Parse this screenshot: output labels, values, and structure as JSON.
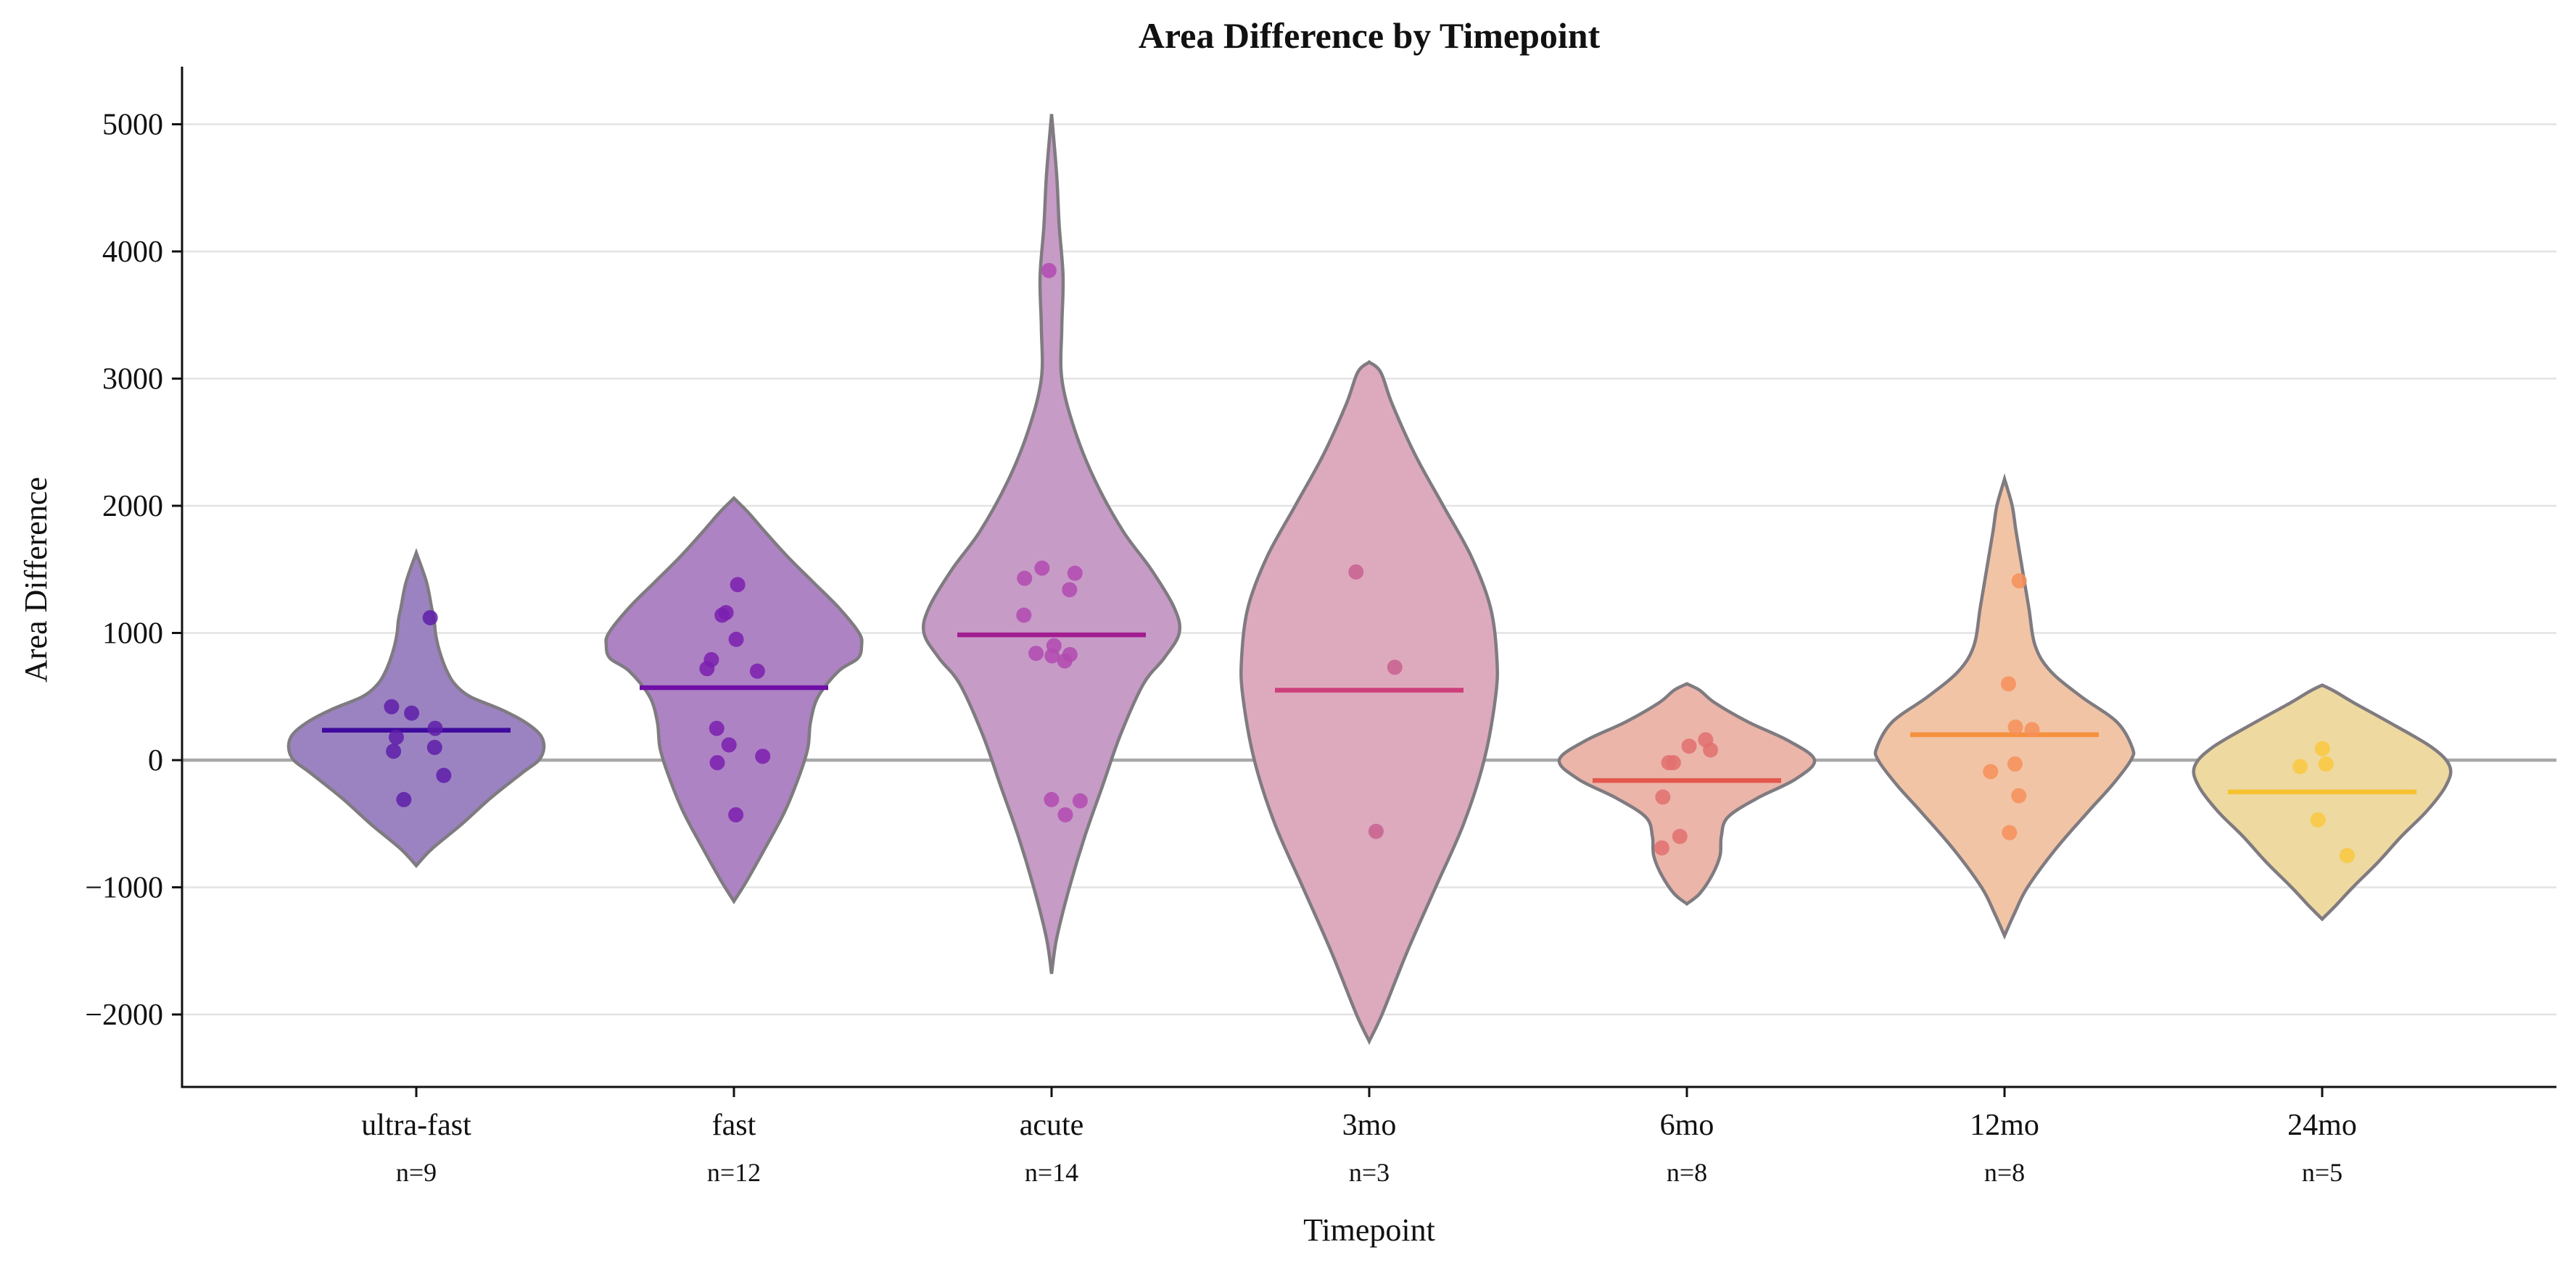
{
  "chart_data": {
    "type": "violin",
    "title": "Area Difference by Timepoint",
    "xlabel": "Timepoint",
    "ylabel": "Area Difference",
    "ylim": [
      -2600,
      5450
    ],
    "yticks": [
      5000,
      4000,
      3000,
      2000,
      1000,
      0,
      -1000,
      -2000
    ],
    "ytick_labels": [
      "5000",
      "4000",
      "3000",
      "2000",
      "1000",
      "0",
      "−1000",
      "−2000"
    ],
    "grid": "horizontal",
    "zero_line": 0,
    "categories": [
      "ultra-fast",
      "fast",
      "acute",
      "3mo",
      "6mo",
      "12mo",
      "24mo"
    ],
    "groups": [
      {
        "name": "ultra-fast",
        "n_label": "n=9",
        "fill": "#9b83c2",
        "point_color": "#5f1fa8",
        "median_color": "#3f0a9e",
        "median": 235,
        "points": [
          1120,
          420,
          370,
          250,
          180,
          100,
          70,
          -120,
          -310
        ],
        "violin_range": [
          -830,
          1630
        ],
        "violin_profile": [
          [
            -830,
            0.0
          ],
          [
            -700,
            0.12
          ],
          [
            -500,
            0.36
          ],
          [
            -300,
            0.58
          ],
          [
            -100,
            0.83
          ],
          [
            0,
            0.96
          ],
          [
            100,
            1.0
          ],
          [
            200,
            0.97
          ],
          [
            300,
            0.85
          ],
          [
            400,
            0.66
          ],
          [
            500,
            0.42
          ],
          [
            600,
            0.3
          ],
          [
            700,
            0.24
          ],
          [
            800,
            0.2
          ],
          [
            900,
            0.17
          ],
          [
            1000,
            0.15
          ],
          [
            1100,
            0.14
          ],
          [
            1200,
            0.12
          ],
          [
            1400,
            0.08
          ],
          [
            1630,
            0.0
          ]
        ]
      },
      {
        "name": "fast",
        "n_label": "n=12",
        "fill": "#ae83c4",
        "point_color": "#7b1fb0",
        "median_color": "#6f0fa5",
        "median": 570,
        "points": [
          1380,
          1160,
          1140,
          950,
          790,
          720,
          700,
          250,
          120,
          30,
          -20,
          -430
        ],
        "violin_range": [
          -1110,
          2060
        ],
        "violin_profile": [
          [
            -1110,
            0.0
          ],
          [
            -950,
            0.1
          ],
          [
            -700,
            0.24
          ],
          [
            -400,
            0.4
          ],
          [
            -100,
            0.52
          ],
          [
            100,
            0.58
          ],
          [
            300,
            0.6
          ],
          [
            500,
            0.66
          ],
          [
            700,
            0.82
          ],
          [
            800,
            0.97
          ],
          [
            900,
            1.0
          ],
          [
            1000,
            0.98
          ],
          [
            1200,
            0.82
          ],
          [
            1400,
            0.62
          ],
          [
            1600,
            0.42
          ],
          [
            1800,
            0.24
          ],
          [
            1950,
            0.11
          ],
          [
            2060,
            0.0
          ]
        ]
      },
      {
        "name": "acute",
        "n_label": "n=14",
        "fill": "#c69bc6",
        "point_color": "#b24ab0",
        "median_color": "#a21d8f",
        "median": 985,
        "points": [
          3850,
          1510,
          1470,
          1430,
          1340,
          1140,
          900,
          840,
          820,
          830,
          780,
          -320,
          -310,
          -430
        ],
        "violin_range": [
          -1680,
          5080
        ],
        "violin_profile": [
          [
            -1680,
            0.0
          ],
          [
            -1400,
            0.04
          ],
          [
            -1000,
            0.14
          ],
          [
            -600,
            0.26
          ],
          [
            -200,
            0.4
          ],
          [
            200,
            0.54
          ],
          [
            600,
            0.72
          ],
          [
            800,
            0.88
          ],
          [
            1000,
            1.0
          ],
          [
            1200,
            0.96
          ],
          [
            1500,
            0.78
          ],
          [
            1800,
            0.56
          ],
          [
            2200,
            0.34
          ],
          [
            2600,
            0.18
          ],
          [
            3000,
            0.08
          ],
          [
            3400,
            0.08
          ],
          [
            3800,
            0.09
          ],
          [
            4200,
            0.06
          ],
          [
            4600,
            0.04
          ],
          [
            5080,
            0.0
          ]
        ]
      },
      {
        "name": "3mo",
        "n_label": "n=3",
        "fill": "#dca9bd",
        "point_color": "#c8628f",
        "median_color": "#cc3f7a",
        "median": 550,
        "points": [
          1480,
          730,
          -560
        ],
        "violin_range": [
          -2210,
          3130
        ],
        "violin_profile": [
          [
            -2210,
            0.0
          ],
          [
            -2000,
            0.1
          ],
          [
            -1500,
            0.3
          ],
          [
            -1000,
            0.52
          ],
          [
            -500,
            0.74
          ],
          [
            0,
            0.9
          ],
          [
            500,
            0.99
          ],
          [
            800,
            1.0
          ],
          [
            1200,
            0.95
          ],
          [
            1600,
            0.8
          ],
          [
            2000,
            0.58
          ],
          [
            2400,
            0.36
          ],
          [
            2800,
            0.18
          ],
          [
            3050,
            0.09
          ],
          [
            3130,
            0.0
          ]
        ]
      },
      {
        "name": "6mo",
        "n_label": "n=8",
        "fill": "#ecb5aa",
        "point_color": "#e2706e",
        "median_color": "#e2584f",
        "median": -160,
        "points": [
          160,
          110,
          80,
          -20,
          -20,
          -290,
          -600,
          -690
        ],
        "violin_range": [
          -1130,
          600
        ],
        "violin_profile": [
          [
            -1130,
            0.0
          ],
          [
            -1050,
            0.1
          ],
          [
            -900,
            0.2
          ],
          [
            -750,
            0.26
          ],
          [
            -600,
            0.27
          ],
          [
            -450,
            0.32
          ],
          [
            -300,
            0.55
          ],
          [
            -150,
            0.85
          ],
          [
            0,
            1.0
          ],
          [
            150,
            0.8
          ],
          [
            300,
            0.48
          ],
          [
            450,
            0.22
          ],
          [
            550,
            0.1
          ],
          [
            600,
            0.0
          ]
        ]
      },
      {
        "name": "12mo",
        "n_label": "n=8",
        "fill": "#f1c4a6",
        "point_color": "#f6915a",
        "median_color": "#f5903f",
        "median": 200,
        "points": [
          1410,
          600,
          260,
          240,
          -30,
          -90,
          -280,
          -570
        ],
        "violin_range": [
          -1380,
          2210
        ],
        "violin_profile": [
          [
            -1380,
            0.0
          ],
          [
            -1200,
            0.08
          ],
          [
            -1000,
            0.18
          ],
          [
            -700,
            0.4
          ],
          [
            -400,
            0.66
          ],
          [
            -200,
            0.84
          ],
          [
            0,
            0.99
          ],
          [
            100,
            1.0
          ],
          [
            300,
            0.88
          ],
          [
            500,
            0.6
          ],
          [
            700,
            0.36
          ],
          [
            900,
            0.24
          ],
          [
            1200,
            0.19
          ],
          [
            1500,
            0.14
          ],
          [
            1800,
            0.09
          ],
          [
            2000,
            0.06
          ],
          [
            2210,
            0.0
          ]
        ]
      },
      {
        "name": "24mo",
        "n_label": "n=5",
        "fill": "#eed9a0",
        "point_color": "#f9c840",
        "median_color": "#f7c22f",
        "median": -250,
        "points": [
          90,
          -30,
          -50,
          -470,
          -750
        ],
        "violin_range": [
          -1250,
          590
        ],
        "violin_profile": [
          [
            -1250,
            0.0
          ],
          [
            -1150,
            0.1
          ],
          [
            -1000,
            0.24
          ],
          [
            -800,
            0.44
          ],
          [
            -600,
            0.62
          ],
          [
            -400,
            0.82
          ],
          [
            -200,
            0.97
          ],
          [
            -50,
            1.0
          ],
          [
            100,
            0.86
          ],
          [
            300,
            0.52
          ],
          [
            450,
            0.25
          ],
          [
            540,
            0.1
          ],
          [
            590,
            0.0
          ]
        ]
      }
    ]
  }
}
